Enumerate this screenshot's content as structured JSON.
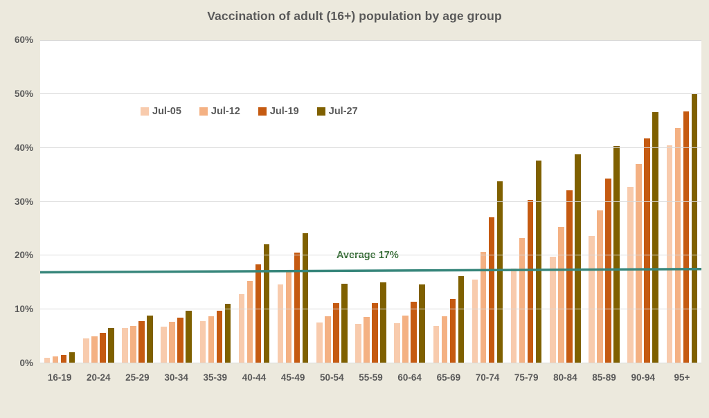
{
  "chart_data": {
    "type": "bar",
    "title": "Vaccination of adult (16+) population by age group",
    "categories": [
      "16-19",
      "20-24",
      "25-29",
      "30-34",
      "35-39",
      "40-44",
      "45-49",
      "50-54",
      "55-59",
      "60-64",
      "65-69",
      "70-74",
      "75-79",
      "80-84",
      "85-89",
      "90-94",
      "95+"
    ],
    "series": [
      {
        "name": "Jul-05",
        "color": "#F8CBAD",
        "values": [
          1.0,
          4.6,
          6.6,
          6.8,
          7.8,
          12.8,
          14.6,
          7.6,
          7.3,
          7.4,
          6.9,
          15.5,
          17.6,
          19.8,
          23.6,
          32.8,
          40.5
        ]
      },
      {
        "name": "Jul-12",
        "color": "#F4B183",
        "values": [
          1.3,
          5.0,
          7.0,
          7.7,
          8.8,
          15.3,
          16.9,
          8.8,
          8.6,
          8.9,
          8.8,
          20.7,
          23.2,
          25.3,
          28.4,
          37.0,
          43.7
        ]
      },
      {
        "name": "Jul-19",
        "color": "#C55A11",
        "values": [
          1.6,
          5.7,
          7.8,
          8.5,
          9.8,
          18.4,
          20.5,
          11.2,
          11.2,
          11.5,
          12.0,
          27.1,
          30.3,
          32.1,
          34.3,
          41.8,
          46.8
        ]
      },
      {
        "name": "Jul-27",
        "color": "#7F6000",
        "values": [
          2.1,
          6.5,
          8.9,
          9.8,
          11.1,
          22.1,
          24.2,
          14.8,
          15.0,
          14.7,
          16.2,
          33.8,
          37.7,
          38.8,
          40.3,
          46.7,
          50.0
        ]
      }
    ],
    "xlabel": "",
    "ylabel": "",
    "ylim": [
      0,
      60
    ],
    "y_tick_step": 10,
    "y_ticks": [
      "0%",
      "10%",
      "20%",
      "30%",
      "40%",
      "50%",
      "60%"
    ],
    "grid": true,
    "legend_position": "inside-upper-left",
    "average_line": {
      "label": "Average 17%",
      "start_value": 16.9,
      "end_value": 17.5,
      "line_color": "#37867B",
      "label_color": "#356B35"
    }
  },
  "colors": {
    "background": "#ECE9DD",
    "plot_background": "#FFFFFF",
    "gridline": "#D9D9D9",
    "text": "#595959"
  }
}
